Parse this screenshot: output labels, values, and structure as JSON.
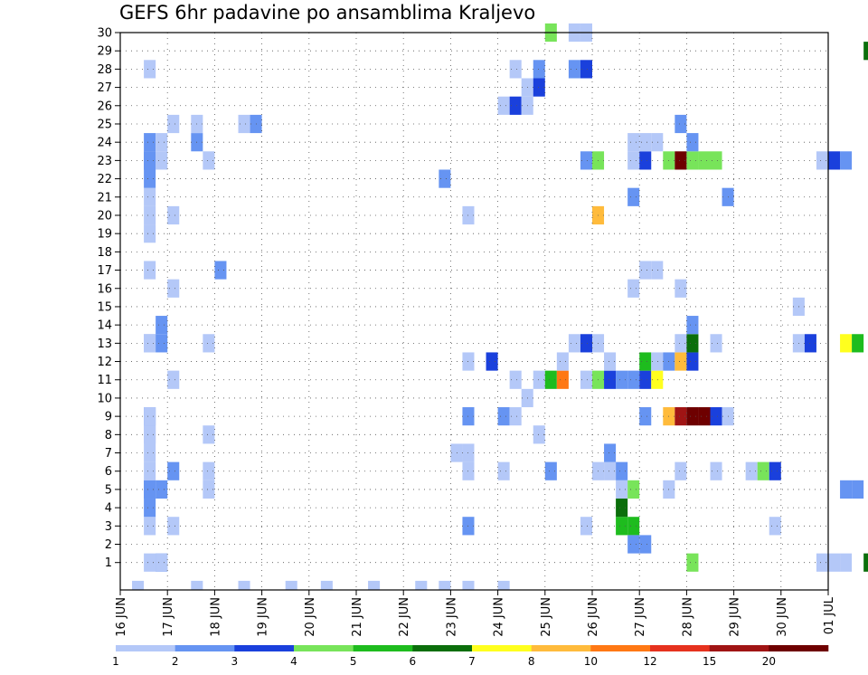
{
  "chart_data": {
    "type": "heatmap",
    "title": "GEFS 6hr padavine po ansamblima Kraljevo",
    "x_tick_labels": [
      "16 JUN",
      "17 JUN",
      "18 JUN",
      "19 JUN",
      "20 JUN",
      "21 JUN",
      "22 JUN",
      "23 JUN",
      "24 JUN",
      "25 JUN",
      "26 JUN",
      "27 JUN",
      "28 JUN",
      "29 JUN",
      "30 JUN",
      "01 JUL"
    ],
    "y_tick_labels": [
      "1",
      "2",
      "3",
      "4",
      "5",
      "6",
      "7",
      "8",
      "9",
      "10",
      "11",
      "12",
      "13",
      "14",
      "15",
      "16",
      "17",
      "18",
      "19",
      "20",
      "21",
      "22",
      "23",
      "24",
      "25",
      "26",
      "27",
      "28",
      "29",
      "30"
    ],
    "x_range_days": [
      16,
      31
    ],
    "time_step_hours": 6,
    "members": 30,
    "grid": true,
    "legend_placement": "bottom",
    "legend_values": [
      "1",
      "2",
      "3",
      "4",
      "5",
      "6",
      "7",
      "8",
      "10",
      "12",
      "15",
      "20"
    ],
    "color_scale": [
      "#b4c8f8",
      "#6694f2",
      "#1a40dc",
      "#78e45a",
      "#1ebc1e",
      "#0b6e0b",
      "#ffff1e",
      "#ffbb3c",
      "#ff7814",
      "#e6321e",
      "#a01414",
      "#6e0000"
    ],
    "cells": [
      [
        16.25,
        0,
        0
      ],
      [
        17.5,
        0,
        0
      ],
      [
        18.5,
        0,
        0
      ],
      [
        19.5,
        0,
        0
      ],
      [
        20.25,
        0,
        0
      ],
      [
        21.25,
        0,
        0
      ],
      [
        22.25,
        0,
        0
      ],
      [
        22.75,
        0,
        0
      ],
      [
        23.25,
        0,
        0
      ],
      [
        24.0,
        0,
        0
      ],
      [
        16.5,
        1,
        0
      ],
      [
        16.75,
        1,
        0
      ],
      [
        26.75,
        2,
        1
      ],
      [
        26.5,
        4,
        5
      ],
      [
        16.5,
        5,
        1
      ],
      [
        16.75,
        5,
        1
      ],
      [
        16.5,
        6,
        0
      ],
      [
        26.25,
        7,
        1
      ],
      [
        16.5,
        8,
        0
      ],
      [
        16.5,
        9,
        0
      ],
      [
        24.5,
        10,
        0
      ],
      [
        16.5,
        13,
        0
      ],
      [
        16.75,
        13,
        1
      ],
      [
        16.75,
        14,
        1
      ],
      [
        18.0,
        17,
        1
      ],
      [
        16.5,
        19,
        0
      ],
      [
        16.5,
        20,
        0
      ],
      [
        16.5,
        22,
        1
      ],
      [
        16.5,
        23,
        1
      ],
      [
        16.75,
        23,
        0
      ],
      [
        16.75,
        24,
        0
      ],
      [
        18.5,
        25,
        0
      ],
      [
        18.75,
        25,
        1
      ],
      [
        24.0,
        26,
        0
      ],
      [
        24.25,
        26,
        2
      ],
      [
        24.5,
        26,
        0
      ],
      [
        24.5,
        27,
        0
      ],
      [
        24.75,
        27,
        2
      ],
      [
        24.75,
        28,
        1
      ]
    ],
    "runs": [
      {
        "member": 1,
        "ranges": [
          [
            16.75,
            1
          ],
          [
            28.0,
            3
          ],
          [
            30.75,
            0
          ],
          [
            31.0,
            0
          ],
          [
            31.25,
            0
          ],
          [
            31.75,
            5
          ]
        ]
      },
      {
        "member": 2,
        "ranges": [
          [
            27.0,
            1
          ]
        ]
      },
      {
        "member": 3,
        "ranges": [
          [
            16.5,
            0
          ],
          [
            17.0,
            0
          ],
          [
            23.25,
            1
          ],
          [
            25.75,
            0
          ],
          [
            26.5,
            4
          ],
          [
            26.75,
            4
          ],
          [
            29.75,
            0
          ]
        ]
      },
      {
        "member": 4,
        "ranges": [
          [
            16.5,
            1
          ]
        ]
      },
      {
        "member": 5,
        "ranges": [
          [
            16.5,
            1
          ],
          [
            17.75,
            0
          ],
          [
            26.5,
            0
          ],
          [
            26.75,
            3
          ],
          [
            27.5,
            0
          ],
          [
            31.25,
            1
          ],
          [
            31.5,
            1
          ]
        ]
      },
      {
        "member": 6,
        "ranges": [
          [
            17.0,
            1
          ],
          [
            17.75,
            0
          ],
          [
            23.25,
            0
          ],
          [
            24.0,
            0
          ],
          [
            25.0,
            1
          ],
          [
            26.0,
            0
          ],
          [
            26.25,
            0
          ],
          [
            26.5,
            1
          ],
          [
            27.75,
            0
          ],
          [
            28.5,
            0
          ],
          [
            29.25,
            0
          ],
          [
            29.5,
            3
          ],
          [
            29.75,
            2
          ]
        ]
      },
      {
        "member": 7,
        "ranges": [
          [
            16.5,
            0
          ],
          [
            23.0,
            0
          ],
          [
            23.25,
            0
          ]
        ]
      },
      {
        "member": 8,
        "ranges": [
          [
            16.5,
            0
          ],
          [
            17.75,
            0
          ],
          [
            24.75,
            0
          ]
        ]
      },
      {
        "member": 9,
        "ranges": [
          [
            16.5,
            1
          ],
          [
            23.25,
            1
          ],
          [
            24.0,
            1
          ],
          [
            24.25,
            0
          ],
          [
            27.0,
            1
          ],
          [
            27.5,
            7
          ],
          [
            27.75,
            10
          ],
          [
            28.0,
            11
          ],
          [
            28.25,
            11
          ],
          [
            28.5,
            2
          ],
          [
            28.75,
            0
          ]
        ]
      },
      {
        "member": 11,
        "ranges": [
          [
            17.0,
            0
          ],
          [
            24.25,
            0
          ],
          [
            24.75,
            0
          ],
          [
            25.0,
            4
          ],
          [
            25.25,
            8
          ],
          [
            25.75,
            0
          ],
          [
            26.0,
            3
          ],
          [
            26.25,
            2
          ],
          [
            26.5,
            1
          ],
          [
            26.75,
            1
          ],
          [
            27.0,
            2
          ],
          [
            27.25,
            6
          ]
        ]
      },
      {
        "member": 12,
        "ranges": [
          [
            23.25,
            0
          ],
          [
            23.75,
            2
          ],
          [
            25.25,
            0
          ],
          [
            26.25,
            0
          ],
          [
            27.0,
            4
          ],
          [
            27.25,
            0
          ],
          [
            27.5,
            1
          ],
          [
            27.75,
            7
          ],
          [
            28.0,
            2
          ]
        ]
      },
      {
        "member": 13,
        "ranges": [
          [
            16.5,
            0
          ],
          [
            17.75,
            0
          ],
          [
            25.5,
            0
          ],
          [
            25.75,
            2
          ],
          [
            26.0,
            0
          ],
          [
            27.75,
            0
          ],
          [
            28.0,
            5
          ],
          [
            28.5,
            0
          ],
          [
            30.25,
            0
          ],
          [
            30.5,
            2
          ],
          [
            31.25,
            6
          ],
          [
            31.5,
            4
          ]
        ]
      },
      {
        "member": 14,
        "ranges": [
          [
            28.0,
            1
          ]
        ]
      },
      {
        "member": 15,
        "ranges": [
          [
            30.25,
            0
          ]
        ]
      },
      {
        "member": 16,
        "ranges": [
          [
            17.0,
            0
          ],
          [
            26.75,
            0
          ],
          [
            27.75,
            0
          ]
        ]
      },
      {
        "member": 17,
        "ranges": [
          [
            16.5,
            0
          ],
          [
            27.0,
            0
          ],
          [
            27.25,
            0
          ]
        ]
      },
      {
        "member": 20,
        "ranges": [
          [
            17.0,
            0
          ],
          [
            23.25,
            0
          ],
          [
            26.0,
            7
          ]
        ]
      },
      {
        "member": 21,
        "ranges": [
          [
            16.5,
            0
          ],
          [
            26.75,
            1
          ],
          [
            28.75,
            1
          ]
        ]
      },
      {
        "member": 22,
        "ranges": [
          [
            22.75,
            1
          ]
        ]
      },
      {
        "member": 23,
        "ranges": [
          [
            16.5,
            1
          ],
          [
            17.75,
            0
          ],
          [
            25.75,
            1
          ],
          [
            26.0,
            3
          ],
          [
            26.75,
            0
          ],
          [
            27.0,
            2
          ],
          [
            27.5,
            3
          ],
          [
            27.75,
            11
          ],
          [
            28.0,
            3
          ],
          [
            28.25,
            3
          ],
          [
            28.5,
            3
          ],
          [
            30.75,
            0
          ],
          [
            31.0,
            2
          ],
          [
            31.25,
            1
          ]
        ]
      },
      {
        "member": 24,
        "ranges": [
          [
            16.5,
            1
          ],
          [
            17.5,
            1
          ],
          [
            26.75,
            0
          ],
          [
            27.0,
            0
          ],
          [
            27.25,
            0
          ],
          [
            28.0,
            1
          ]
        ]
      },
      {
        "member": 25,
        "ranges": [
          [
            17.0,
            0
          ],
          [
            17.5,
            0
          ],
          [
            27.75,
            1
          ]
        ]
      },
      {
        "member": 28,
        "ranges": [
          [
            16.5,
            0
          ],
          [
            24.25,
            0
          ],
          [
            25.5,
            1
          ],
          [
            25.75,
            2
          ]
        ]
      },
      {
        "member": 29,
        "ranges": [
          [
            31.75,
            5
          ]
        ]
      },
      {
        "member": 30,
        "ranges": [
          [
            25.0,
            3
          ],
          [
            25.5,
            0
          ],
          [
            25.75,
            0
          ]
        ]
      }
    ]
  }
}
